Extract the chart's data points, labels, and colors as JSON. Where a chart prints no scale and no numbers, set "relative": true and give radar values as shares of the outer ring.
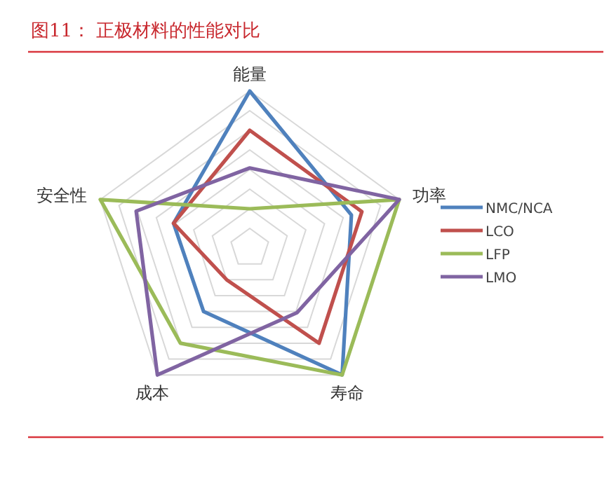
{
  "chart_data": {
    "type": "radar",
    "title": "图11：  正极材料的性能对比",
    "relative": true,
    "grid": true,
    "legend": "right",
    "line_style": "solid",
    "marker": "none",
    "categories": [
      "能量",
      "功率",
      "寿命",
      "成本",
      "安全性"
    ],
    "series": [
      {
        "name": "NMC/NCA",
        "color": "#4f81bd",
        "values": [
          1.0,
          0.68,
          1.0,
          0.5,
          0.51
        ]
      },
      {
        "name": "LCO",
        "color": "#c0504d",
        "values": [
          0.75,
          0.75,
          0.75,
          0.25,
          0.51
        ]
      },
      {
        "name": "LFP",
        "color": "#9bbb59",
        "values": [
          0.25,
          1.0,
          1.0,
          0.75,
          1.0
        ]
      },
      {
        "name": "LMO",
        "color": "#8064a2",
        "values": [
          0.51,
          1.0,
          0.51,
          1.0,
          0.76
        ]
      }
    ]
  }
}
